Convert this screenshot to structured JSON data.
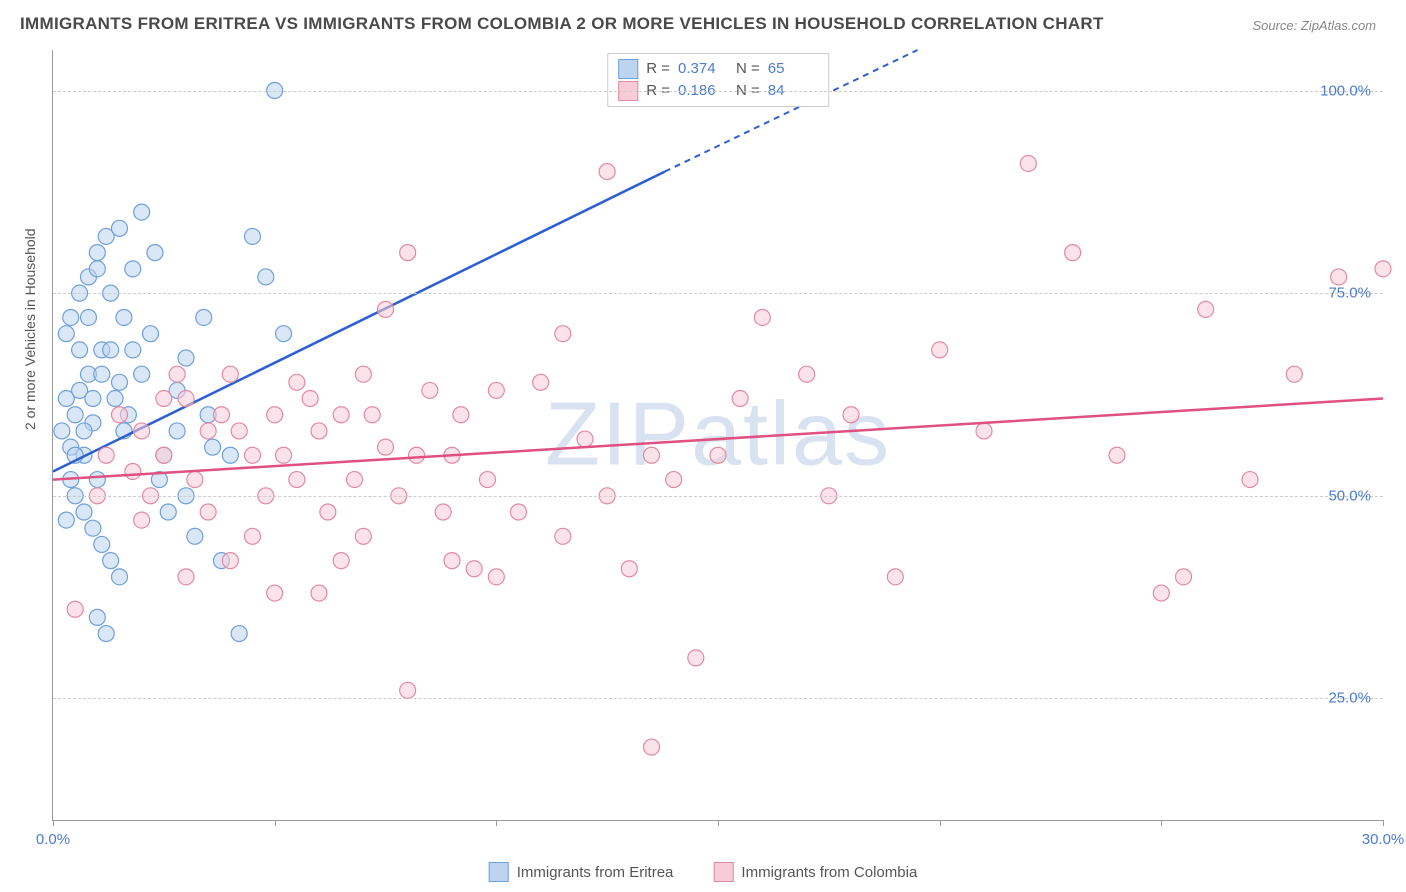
{
  "title": "IMMIGRANTS FROM ERITREA VS IMMIGRANTS FROM COLOMBIA 2 OR MORE VEHICLES IN HOUSEHOLD CORRELATION CHART",
  "source": "Source: ZipAtlas.com",
  "ylabel": "2 or more Vehicles in Household",
  "watermark": "ZIPatlas",
  "chart": {
    "type": "scatter",
    "xlim": [
      0,
      30
    ],
    "ylim": [
      10,
      105
    ],
    "x_ticks": [
      0,
      5,
      10,
      15,
      20,
      25,
      30
    ],
    "x_tick_labels": {
      "0": "0.0%",
      "30": "30.0%"
    },
    "y_grid": [
      25,
      50,
      75,
      100
    ],
    "y_tick_labels": {
      "25": "25.0%",
      "50": "50.0%",
      "75": "75.0%",
      "100": "100.0%"
    },
    "background_color": "#ffffff",
    "grid_color": "#cccccc",
    "axis_color": "#999999",
    "marker_radius": 8,
    "marker_opacity": 0.55,
    "series": [
      {
        "name": "Immigrants from Eritrea",
        "color_fill": "#bcd4ef",
        "color_stroke": "#6fa0dd",
        "line_color": "#2d5fd1",
        "R": "0.374",
        "N": "65",
        "trend": {
          "x1": 0,
          "y1": 53,
          "x2_solid": 13.8,
          "y2_solid": 90,
          "x2_dash": 19.5,
          "y2_dash": 105
        },
        "points": [
          [
            0.2,
            58
          ],
          [
            0.3,
            62
          ],
          [
            0.4,
            56
          ],
          [
            0.5,
            60
          ],
          [
            0.6,
            63
          ],
          [
            0.7,
            55
          ],
          [
            0.8,
            65
          ],
          [
            0.9,
            59
          ],
          [
            1.0,
            52
          ],
          [
            1.1,
            68
          ],
          [
            0.3,
            70
          ],
          [
            0.4,
            72
          ],
          [
            0.6,
            75
          ],
          [
            0.8,
            77
          ],
          [
            1.0,
            80
          ],
          [
            1.2,
            82
          ],
          [
            1.5,
            83
          ],
          [
            1.8,
            78
          ],
          [
            2.0,
            65
          ],
          [
            2.2,
            70
          ],
          [
            0.5,
            50
          ],
          [
            0.7,
            48
          ],
          [
            0.9,
            46
          ],
          [
            1.1,
            44
          ],
          [
            1.3,
            42
          ],
          [
            1.5,
            40
          ],
          [
            1.0,
            35
          ],
          [
            1.2,
            33
          ],
          [
            0.3,
            47
          ],
          [
            0.4,
            52
          ],
          [
            2.5,
            55
          ],
          [
            2.8,
            58
          ],
          [
            3.0,
            50
          ],
          [
            3.2,
            45
          ],
          [
            3.5,
            60
          ],
          [
            3.8,
            42
          ],
          [
            4.0,
            55
          ],
          [
            4.2,
            33
          ],
          [
            4.5,
            82
          ],
          [
            4.8,
            77
          ],
          [
            5.0,
            100
          ],
          [
            5.2,
            70
          ],
          [
            2.0,
            85
          ],
          [
            2.3,
            80
          ],
          [
            1.6,
            72
          ],
          [
            1.8,
            68
          ],
          [
            0.6,
            68
          ],
          [
            0.8,
            72
          ],
          [
            1.4,
            62
          ],
          [
            1.6,
            58
          ],
          [
            2.4,
            52
          ],
          [
            2.6,
            48
          ],
          [
            2.8,
            63
          ],
          [
            3.0,
            67
          ],
          [
            3.4,
            72
          ],
          [
            3.6,
            56
          ],
          [
            1.0,
            78
          ],
          [
            1.3,
            75
          ],
          [
            0.5,
            55
          ],
          [
            0.7,
            58
          ],
          [
            0.9,
            62
          ],
          [
            1.1,
            65
          ],
          [
            1.3,
            68
          ],
          [
            1.5,
            64
          ],
          [
            1.7,
            60
          ]
        ]
      },
      {
        "name": "Immigrants from Colombia",
        "color_fill": "#f7ccd7",
        "color_stroke": "#e38aa3",
        "line_color": "#e05080",
        "R": "0.186",
        "N": "84",
        "trend": {
          "x1": 0,
          "y1": 52,
          "x2_solid": 30,
          "y2_solid": 62,
          "x2_dash": 30,
          "y2_dash": 62
        },
        "points": [
          [
            0.5,
            36
          ],
          [
            1.0,
            50
          ],
          [
            1.5,
            60
          ],
          [
            2.0,
            58
          ],
          [
            2.5,
            55
          ],
          [
            3.0,
            62
          ],
          [
            3.5,
            48
          ],
          [
            4.0,
            65
          ],
          [
            4.5,
            45
          ],
          [
            5.0,
            60
          ],
          [
            5.5,
            52
          ],
          [
            6.0,
            58
          ],
          [
            6.5,
            42
          ],
          [
            7.0,
            65
          ],
          [
            7.5,
            73
          ],
          [
            8.0,
            80
          ],
          [
            8.5,
            63
          ],
          [
            9.0,
            55
          ],
          [
            9.5,
            41
          ],
          [
            10.0,
            40
          ],
          [
            10.5,
            48
          ],
          [
            11.0,
            64
          ],
          [
            11.5,
            70
          ],
          [
            12.0,
            57
          ],
          [
            12.5,
            90
          ],
          [
            13.0,
            41
          ],
          [
            13.5,
            19
          ],
          [
            14.0,
            52
          ],
          [
            14.5,
            30
          ],
          [
            15.0,
            55
          ],
          [
            16.0,
            72
          ],
          [
            17.0,
            65
          ],
          [
            18.0,
            60
          ],
          [
            19.0,
            40
          ],
          [
            20.0,
            68
          ],
          [
            21.0,
            58
          ],
          [
            22.0,
            91
          ],
          [
            23.0,
            80
          ],
          [
            24.0,
            55
          ],
          [
            25.0,
            38
          ],
          [
            26.0,
            73
          ],
          [
            27.0,
            52
          ],
          [
            28.0,
            65
          ],
          [
            29.0,
            77
          ],
          [
            30.0,
            78
          ],
          [
            8.0,
            26
          ],
          [
            9.0,
            42
          ],
          [
            10.0,
            63
          ],
          [
            6.0,
            38
          ],
          [
            7.0,
            45
          ],
          [
            3.0,
            40
          ],
          [
            4.0,
            42
          ],
          [
            5.0,
            38
          ],
          [
            2.0,
            47
          ],
          [
            2.5,
            62
          ],
          [
            3.5,
            58
          ],
          [
            4.5,
            55
          ],
          [
            5.5,
            64
          ],
          [
            6.5,
            60
          ],
          [
            7.5,
            56
          ],
          [
            1.2,
            55
          ],
          [
            1.8,
            53
          ],
          [
            2.2,
            50
          ],
          [
            2.8,
            65
          ],
          [
            3.2,
            52
          ],
          [
            3.8,
            60
          ],
          [
            4.2,
            58
          ],
          [
            4.8,
            50
          ],
          [
            5.2,
            55
          ],
          [
            5.8,
            62
          ],
          [
            6.2,
            48
          ],
          [
            6.8,
            52
          ],
          [
            7.2,
            60
          ],
          [
            7.8,
            50
          ],
          [
            8.2,
            55
          ],
          [
            8.8,
            48
          ],
          [
            9.2,
            60
          ],
          [
            9.8,
            52
          ],
          [
            11.5,
            45
          ],
          [
            12.5,
            50
          ],
          [
            13.5,
            55
          ],
          [
            15.5,
            62
          ],
          [
            17.5,
            50
          ],
          [
            25.5,
            40
          ]
        ]
      }
    ],
    "legend_bottom": [
      {
        "label": "Immigrants from Eritrea",
        "swatch_fill": "#bcd4ef",
        "swatch_stroke": "#6fa0dd"
      },
      {
        "label": "Immigrants from Colombia",
        "swatch_fill": "#f7ccd7",
        "swatch_stroke": "#e38aa3"
      }
    ]
  },
  "label_fontsize": 14,
  "tick_fontsize": 15,
  "title_fontsize": 17
}
